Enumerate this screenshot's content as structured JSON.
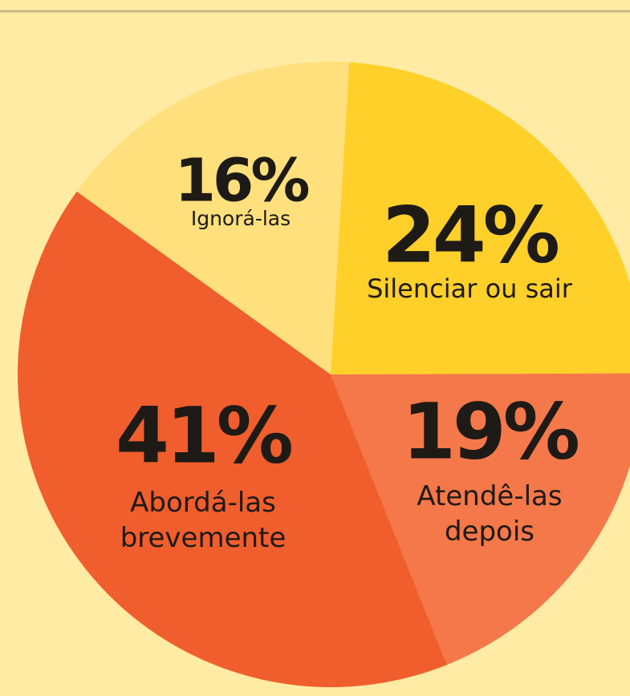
{
  "chart_data": {
    "type": "pie",
    "categories": [
      "Silenciar ou sair",
      "Atendê-las\ndepois",
      "Abordá-las\nbrevemente",
      "Ignorá-las"
    ],
    "values": [
      24,
      19,
      41,
      16
    ],
    "value_labels": [
      "24%",
      "19%",
      "41%",
      "16%"
    ],
    "colors": [
      "#ffd02a",
      "#f47849",
      "#ef5e2c",
      "#ffe07c"
    ]
  }
}
